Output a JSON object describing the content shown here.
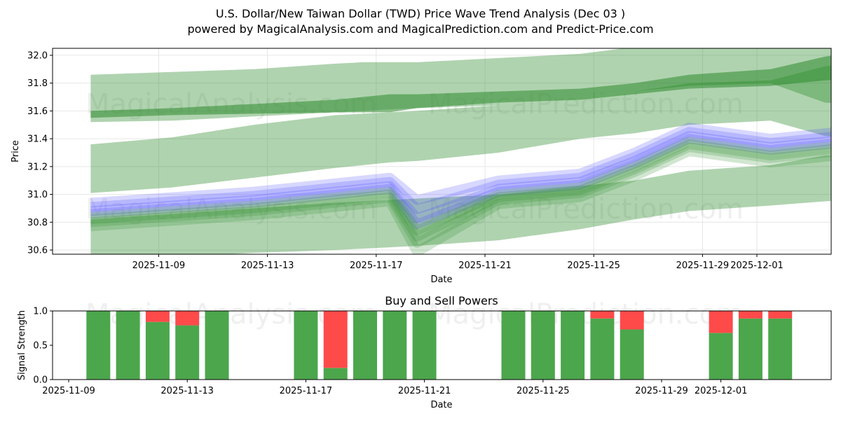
{
  "title_line1": "U.S. Dollar/New Taiwan Dollar (TWD) Price Wave Trend Analysis (Dec 03 )",
  "title_line2": "powered by MagicalAnalysis.com and MagicalPrediction.com and Predict-Price.com",
  "watermarks": [
    "MagicalAnalysis.com",
    "MagicalPrediction.com"
  ],
  "colors": {
    "green": "#2e8b2e",
    "blue": "#4a4aff",
    "buy": "#4ca64c",
    "sell": "#ff4a4a"
  },
  "chart_data": [
    {
      "type": "area",
      "title": "",
      "xlabel": "Date",
      "ylabel": "Price",
      "ylim": [
        30.57,
        32.05
      ],
      "yticks": [
        30.6,
        30.8,
        31.0,
        31.2,
        31.4,
        31.6,
        31.8,
        32.0
      ],
      "xticks": [
        "2025-11-09",
        "2025-11-13",
        "2025-11-17",
        "2025-11-21",
        "2025-11-25",
        "2025-11-29",
        "2025-12-01"
      ],
      "grid": true,
      "x_days": [
        0,
        3,
        6,
        9,
        10,
        11,
        12,
        15,
        18,
        20,
        22,
        25,
        27,
        28
      ],
      "x_dates": [
        "2025-11-06",
        "2025-11-09",
        "2025-11-12",
        "2025-11-15",
        "2025-11-16",
        "2025-11-17",
        "2025-11-18",
        "2025-11-21",
        "2025-11-24",
        "2025-11-26",
        "2025-11-28",
        "2025-12-01",
        "2025-12-03",
        "2025-12-04"
      ],
      "series": [
        {
          "name": "green band 1",
          "upper": [
            31.86,
            31.88,
            31.9,
            31.94,
            31.95,
            31.95,
            31.95,
            31.98,
            32.01,
            32.06,
            32.1,
            32.12,
            32.18,
            32.2
          ],
          "lower": [
            31.52,
            31.53,
            31.56,
            31.59,
            31.6,
            31.61,
            31.62,
            31.64,
            31.7,
            31.74,
            31.78,
            31.8,
            31.66,
            31.65
          ]
        },
        {
          "name": "green band 2",
          "upper": [
            31.36,
            31.41,
            31.5,
            31.57,
            31.58,
            31.59,
            31.6,
            31.64,
            31.7,
            31.74,
            31.8,
            31.82,
            31.92,
            31.94
          ],
          "lower": [
            31.01,
            31.05,
            31.12,
            31.19,
            31.21,
            31.23,
            31.24,
            31.3,
            31.4,
            31.44,
            31.5,
            31.53,
            31.42,
            31.41
          ]
        },
        {
          "name": "green band 3",
          "upper": [
            30.82,
            30.86,
            30.9,
            30.94,
            30.95,
            30.96,
            30.97,
            31.0,
            31.06,
            31.1,
            31.17,
            31.21,
            31.28,
            31.29
          ],
          "lower": [
            30.5,
            30.55,
            30.58,
            30.6,
            30.61,
            30.62,
            30.63,
            30.67,
            30.75,
            30.82,
            30.88,
            30.92,
            30.95,
            30.96
          ]
        },
        {
          "name": "dark green trend",
          "upper": [
            31.6,
            31.62,
            31.65,
            31.68,
            31.7,
            31.72,
            31.72,
            31.74,
            31.76,
            31.8,
            31.86,
            31.9,
            31.99,
            32.02
          ],
          "lower": [
            31.55,
            31.57,
            31.58,
            31.59,
            31.59,
            31.59,
            31.62,
            31.66,
            31.68,
            31.72,
            31.76,
            31.78,
            31.82,
            31.83
          ]
        },
        {
          "name": "price ensemble",
          "values": [
            30.84,
            30.88,
            30.92,
            30.98,
            31.0,
            31.02,
            30.8,
            31.0,
            31.05,
            31.2,
            31.38,
            31.3,
            31.34,
            31.36
          ]
        }
      ]
    },
    {
      "type": "bar",
      "title": "Buy and Sell Powers",
      "xlabel": "Date",
      "ylabel": "Signal Strength",
      "ylim": [
        0,
        1.0
      ],
      "yticks": [
        "0.0",
        "0.5",
        "1.0"
      ],
      "xticks": [
        "2025-11-09",
        "2025-11-13",
        "2025-11-17",
        "2025-11-21",
        "2025-11-25",
        "2025-11-29",
        "2025-12-01"
      ],
      "categories": [
        "2025-11-10",
        "2025-11-11",
        "2025-11-12",
        "2025-11-13",
        "2025-11-14",
        "2025-11-17",
        "2025-11-18",
        "2025-11-19",
        "2025-11-20",
        "2025-11-21",
        "2025-11-24",
        "2025-11-25",
        "2025-11-26",
        "2025-11-27",
        "2025-11-28",
        "2025-12-01",
        "2025-12-02",
        "2025-12-03"
      ],
      "series": [
        {
          "name": "Buy",
          "values": [
            1.0,
            1.0,
            0.84,
            0.79,
            1.0,
            1.0,
            0.17,
            1.0,
            1.0,
            1.0,
            1.0,
            1.0,
            1.0,
            0.89,
            0.73,
            0.68,
            0.89,
            0.89
          ]
        },
        {
          "name": "Sell",
          "values": [
            0.0,
            0.0,
            0.16,
            0.21,
            0.0,
            0.0,
            0.83,
            0.0,
            0.0,
            0.0,
            0.0,
            0.0,
            0.0,
            0.11,
            0.27,
            0.32,
            0.11,
            0.11
          ]
        }
      ]
    }
  ]
}
